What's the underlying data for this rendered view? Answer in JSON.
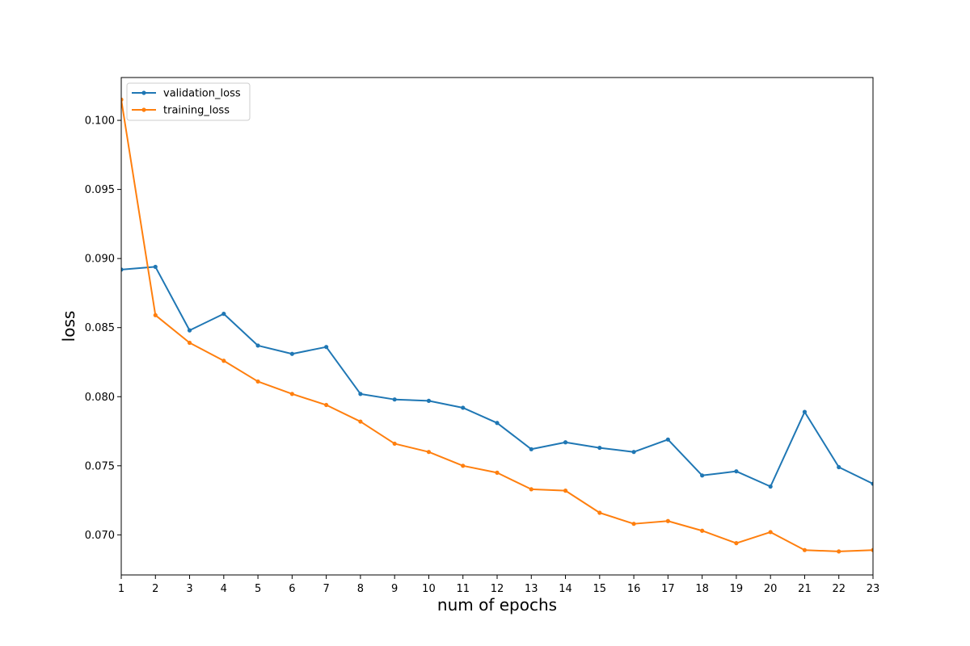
{
  "chart_data": {
    "type": "line",
    "title": "",
    "xlabel": "num of epochs",
    "ylabel": "loss",
    "xlim": [
      1,
      23
    ],
    "ylim": [
      0.0671,
      0.1031
    ],
    "x": [
      1,
      2,
      3,
      4,
      5,
      6,
      7,
      8,
      9,
      10,
      11,
      12,
      13,
      14,
      15,
      16,
      17,
      18,
      19,
      20,
      21,
      22,
      23
    ],
    "x_ticks": [
      1,
      2,
      3,
      4,
      5,
      6,
      7,
      8,
      9,
      10,
      11,
      12,
      13,
      14,
      15,
      16,
      17,
      18,
      19,
      20,
      21,
      22,
      23
    ],
    "x_tick_labels": [
      "1",
      "2",
      "3",
      "4",
      "5",
      "6",
      "7",
      "8",
      "9",
      "10",
      "11",
      "12",
      "13",
      "14",
      "15",
      "16",
      "17",
      "18",
      "19",
      "20",
      "21",
      "22",
      "23"
    ],
    "y_ticks": [
      0.07,
      0.075,
      0.08,
      0.085,
      0.09,
      0.095,
      0.1
    ],
    "y_tick_labels": [
      "0.070",
      "0.075",
      "0.080",
      "0.085",
      "0.090",
      "0.095",
      "0.100"
    ],
    "grid": false,
    "legend_position": "top-left",
    "series": [
      {
        "name": "validation_loss",
        "color": "#1f77b4",
        "values": [
          0.0892,
          0.0894,
          0.0848,
          0.086,
          0.0837,
          0.0831,
          0.0836,
          0.0802,
          0.0798,
          0.0797,
          0.0792,
          0.0781,
          0.0762,
          0.0767,
          0.0763,
          0.076,
          0.0769,
          0.0743,
          0.0746,
          0.0735,
          0.0789,
          0.0749,
          0.0737
        ]
      },
      {
        "name": "training_loss",
        "color": "#ff7f0e",
        "values": [
          0.1015,
          0.0859,
          0.0839,
          0.0826,
          0.0811,
          0.0802,
          0.0794,
          0.0782,
          0.0766,
          0.076,
          0.075,
          0.0745,
          0.0733,
          0.0732,
          0.0716,
          0.0708,
          0.071,
          0.0703,
          0.0694,
          0.0702,
          0.0689,
          0.0688,
          0.0689
        ]
      }
    ]
  }
}
